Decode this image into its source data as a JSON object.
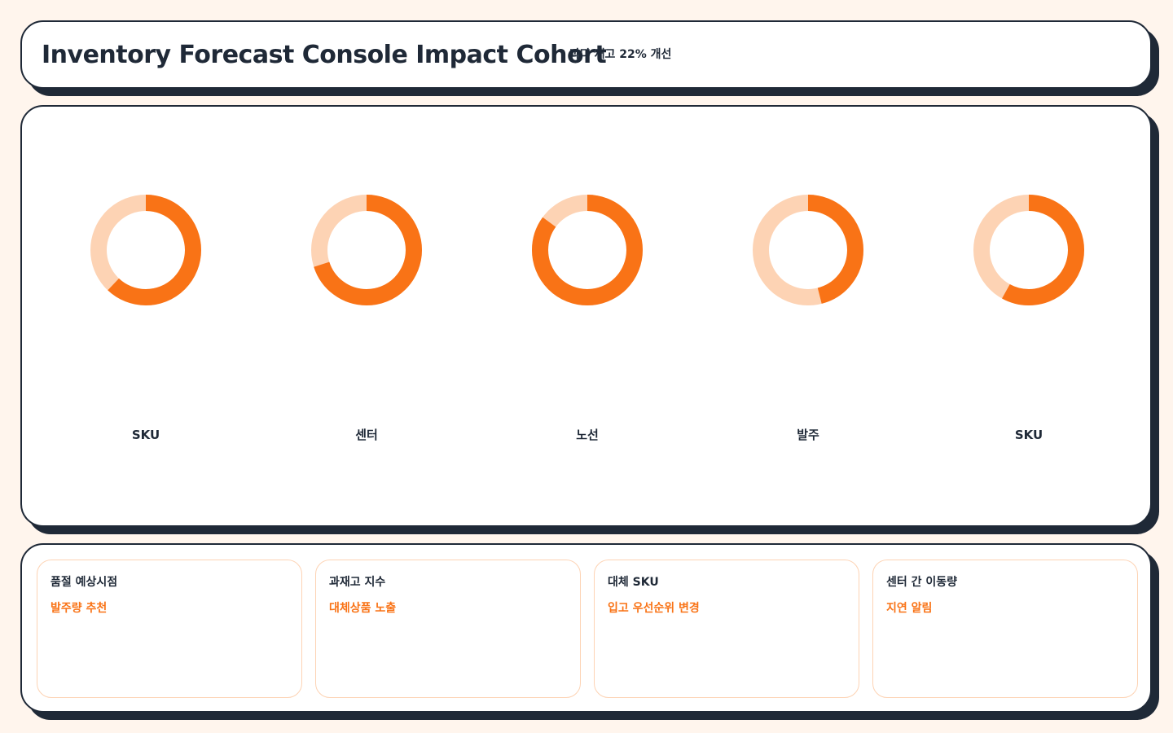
{
  "header": {
    "title": "Inventory Forecast Console Impact Cohort",
    "subtitle": "과다 재고 22% 개선"
  },
  "colors": {
    "accent": "#f97316",
    "track": "#fdd3b4",
    "ink": "#1f2937",
    "background": "#fff5ed"
  },
  "chart_data": {
    "type": "pie",
    "variant": "donut",
    "title": "",
    "series": [
      {
        "label": "SKU",
        "value": 62
      },
      {
        "label": "센터",
        "value": 70
      },
      {
        "label": "노선",
        "value": 85
      },
      {
        "label": "발주",
        "value": 46
      },
      {
        "label": "SKU",
        "value": 58
      }
    ],
    "unit": "percent",
    "range": [
      0,
      100
    ]
  },
  "cards": [
    {
      "title": "품절 예상시점",
      "action": "발주량 추천"
    },
    {
      "title": "과재고 지수",
      "action": "대체상품 노출"
    },
    {
      "title": "대체 SKU",
      "action": "입고 우선순위 변경"
    },
    {
      "title": "센터 간 이동량",
      "action": "지연 알림"
    }
  ]
}
